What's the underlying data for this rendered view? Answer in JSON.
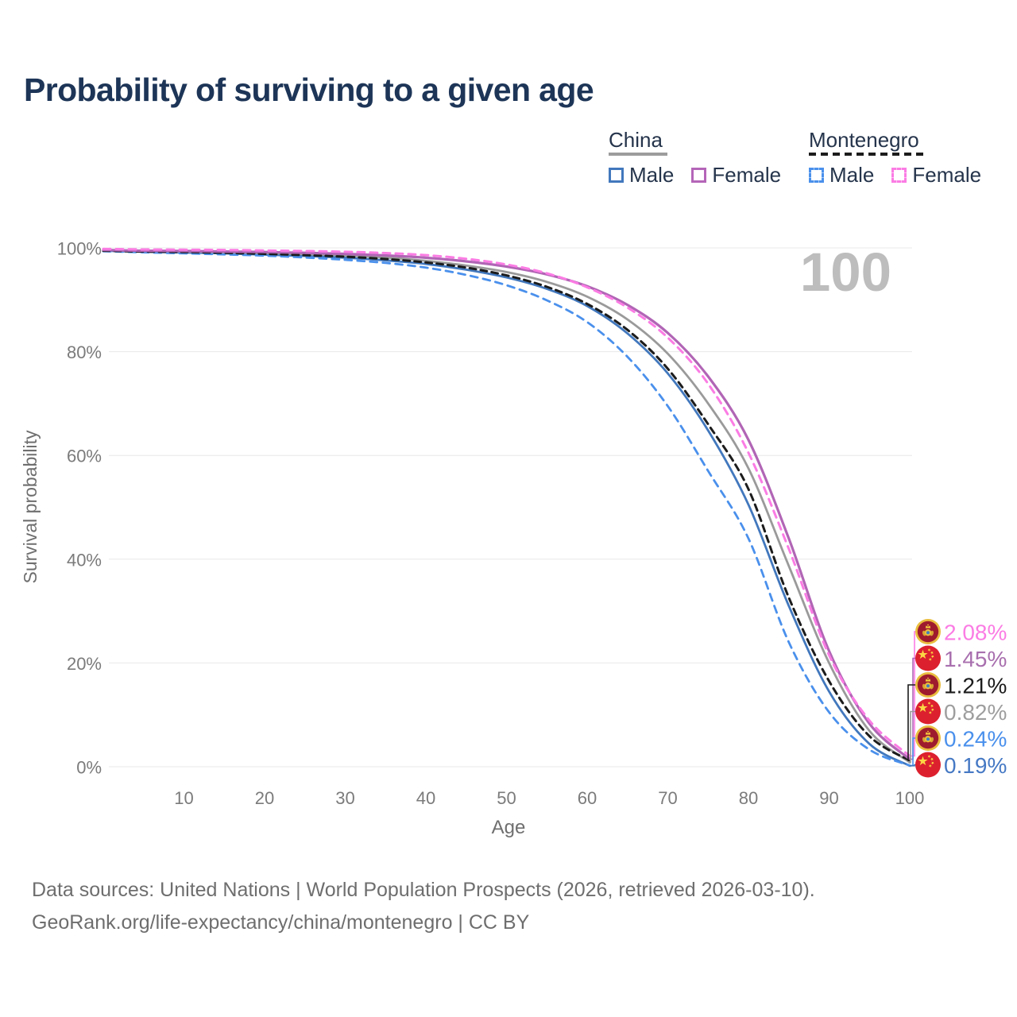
{
  "title": "Probability of surviving to a given age",
  "watermark": {
    "text": "100"
  },
  "legend": {
    "groups": [
      {
        "label": "China",
        "line_style": "solid",
        "underline_color": "#9c9c9c",
        "items": [
          {
            "label": "Male",
            "color": "#4278bd"
          },
          {
            "label": "Female",
            "color": "#b465b8"
          }
        ]
      },
      {
        "label": "Montenegro",
        "line_style": "dashed",
        "underline_color": "#1c1c1c",
        "items": [
          {
            "label": "Male",
            "color": "#4a90ec"
          },
          {
            "label": "Female",
            "color": "#fb7ce4"
          }
        ]
      }
    ]
  },
  "chart_data": {
    "type": "line",
    "title": "Probability of surviving to a given age",
    "xlabel": "Age",
    "ylabel": "Survival probability",
    "xlim": [
      0,
      100
    ],
    "ylim": [
      0,
      100
    ],
    "x_ticks": [
      10,
      20,
      30,
      40,
      50,
      60,
      70,
      80,
      90,
      100
    ],
    "y_ticks": [
      0,
      20,
      40,
      60,
      80,
      100
    ],
    "y_tick_suffix": "%",
    "grid": "horizontal",
    "highlighted_age": "100",
    "ages": [
      0,
      5,
      10,
      15,
      20,
      25,
      30,
      35,
      40,
      45,
      50,
      55,
      60,
      65,
      70,
      75,
      80,
      85,
      90,
      95,
      100
    ],
    "series": [
      {
        "name": "Montenegro Female",
        "country": "Montenegro",
        "sex": "Female",
        "flag": "montenegro",
        "color": "#fb7ce4",
        "dash": "9 7",
        "width": 3,
        "end_label": "2.08%",
        "label_color": "#fb7ce4",
        "values": [
          99.8,
          99.7,
          99.65,
          99.6,
          99.5,
          99.4,
          99.25,
          99.0,
          98.6,
          97.9,
          96.8,
          95.1,
          92.4,
          88.5,
          82.7,
          73.8,
          60.5,
          42.0,
          21.5,
          8.9,
          2.08
        ]
      },
      {
        "name": "China Female",
        "country": "China",
        "sex": "Female",
        "flag": "china",
        "color": "#b165b5",
        "dash": null,
        "width": 3.2,
        "end_label": "1.45%",
        "label_color": "#a86fae",
        "values": [
          99.6,
          99.45,
          99.4,
          99.3,
          99.2,
          99.05,
          98.85,
          98.55,
          98.1,
          97.4,
          96.4,
          94.9,
          92.6,
          89.0,
          83.6,
          75.2,
          63.0,
          44.0,
          22.3,
          8.3,
          1.45
        ]
      },
      {
        "name": "Montenegro Both sexes",
        "country": "Montenegro",
        "sex": "Both",
        "flag": "montenegro",
        "color": "#1c1c1c",
        "dash": "8 6",
        "width": 3,
        "end_label": "1.21%",
        "label_color": "#1c1c1c",
        "values": [
          99.45,
          99.3,
          99.2,
          99.05,
          98.85,
          98.6,
          98.3,
          97.85,
          97.2,
          96.2,
          94.7,
          92.5,
          89.2,
          84.2,
          76.7,
          66.0,
          53.5,
          32.6,
          16.5,
          5.9,
          1.21
        ]
      },
      {
        "name": "China Both sexes",
        "country": "China",
        "sex": "Both",
        "flag": "china",
        "color": "#9a9a9a",
        "dash": null,
        "width": 2.8,
        "end_label": "0.82%",
        "label_color": "#9e9e9e",
        "values": [
          99.55,
          99.4,
          99.3,
          99.15,
          99.0,
          98.8,
          98.55,
          98.15,
          97.5,
          96.6,
          95.35,
          93.45,
          90.6,
          86.2,
          79.6,
          70.0,
          57.5,
          38.7,
          20.0,
          6.9,
          0.82
        ]
      },
      {
        "name": "Montenegro Male",
        "country": "Montenegro",
        "sex": "Male",
        "flag": "montenegro",
        "color": "#4a90ec",
        "dash": "9 7",
        "width": 2.8,
        "end_label": "0.24%",
        "label_color": "#4a90ec",
        "values": [
          99.35,
          99.15,
          98.95,
          98.75,
          98.5,
          98.15,
          97.7,
          97.1,
          96.2,
          94.8,
          92.8,
          89.9,
          85.7,
          79.0,
          69.5,
          57.0,
          44.0,
          24.0,
          10.5,
          3.3,
          0.24
        ]
      },
      {
        "name": "China Male",
        "country": "China",
        "sex": "Male",
        "flag": "china",
        "color": "#4278bd",
        "dash": null,
        "width": 2.8,
        "end_label": "0.19%",
        "label_color": "#4679c4",
        "values": [
          99.45,
          99.25,
          99.1,
          98.95,
          98.7,
          98.45,
          98.1,
          97.6,
          96.9,
          95.8,
          94.3,
          92.1,
          88.8,
          83.5,
          75.8,
          64.8,
          50.5,
          31.0,
          14.5,
          4.4,
          0.19
        ]
      }
    ]
  },
  "footer": {
    "line1": "Data sources: United Nations | World Population Prospects (2026, retrieved 2026-03-10).",
    "line2": "GeoRank.org/life-expectancy/china/montenegro | CC BY"
  }
}
